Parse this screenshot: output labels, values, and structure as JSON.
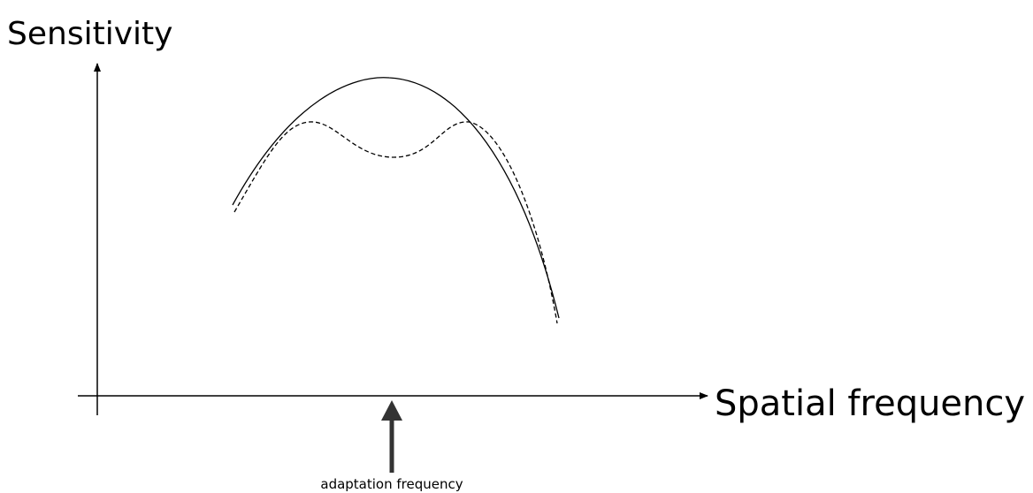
{
  "y_axis_label": "Sensitivity",
  "x_axis_label": "Spatial frequency",
  "arrow_label": "adaptation frequency"
}
